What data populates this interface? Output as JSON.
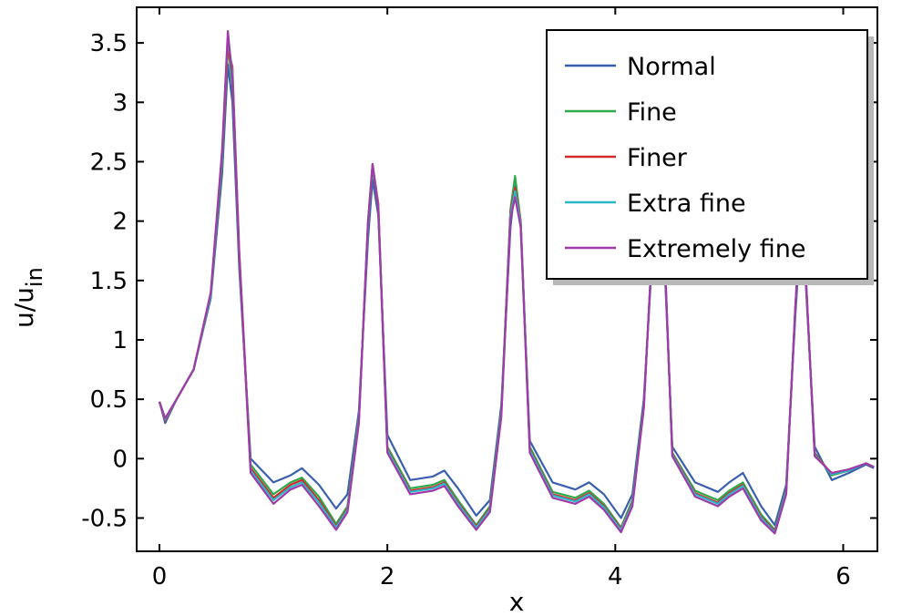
{
  "chart_data": {
    "type": "line",
    "xlabel": "x",
    "ylabel": "u/u",
    "ylabel_subscript": "in",
    "xlim": [
      -0.2,
      6.3
    ],
    "ylim": [
      -0.78,
      3.8
    ],
    "xticks": [
      0,
      2,
      4,
      6
    ],
    "xtick_labels": [
      "0",
      "2",
      "4",
      "6"
    ],
    "yticks": [
      -0.5,
      0,
      0.5,
      1,
      1.5,
      2,
      2.5,
      3,
      3.5
    ],
    "ytick_labels": [
      "-0.5",
      "0",
      "0.5",
      "1",
      "1.5",
      "2",
      "2.5",
      "3",
      "3.5"
    ],
    "grid": false,
    "legend_position": "top-right",
    "x": [
      0,
      0.05,
      0.15,
      0.3,
      0.45,
      0.55,
      0.6,
      0.64,
      0.7,
      0.8,
      1.0,
      1.15,
      1.25,
      1.4,
      1.55,
      1.65,
      1.75,
      1.83,
      1.87,
      1.92,
      2.0,
      2.2,
      2.4,
      2.5,
      2.62,
      2.78,
      2.9,
      3.0,
      3.08,
      3.12,
      3.17,
      3.25,
      3.45,
      3.65,
      3.77,
      3.9,
      4.05,
      4.15,
      4.25,
      4.33,
      4.38,
      4.42,
      4.5,
      4.7,
      4.9,
      5.0,
      5.12,
      5.28,
      5.4,
      5.5,
      5.58,
      5.62,
      5.67,
      5.75,
      5.9,
      6.05,
      6.2,
      6.27
    ],
    "series": [
      {
        "name": "Normal",
        "color": "#3a5fae",
        "values": [
          0.48,
          0.3,
          0.5,
          0.75,
          1.35,
          2.4,
          3.32,
          3.0,
          1.6,
          0.0,
          -0.2,
          -0.14,
          -0.08,
          -0.22,
          -0.42,
          -0.3,
          0.4,
          1.85,
          2.35,
          2.05,
          0.2,
          -0.18,
          -0.15,
          -0.1,
          -0.25,
          -0.48,
          -0.35,
          0.45,
          1.95,
          2.3,
          1.95,
          0.15,
          -0.2,
          -0.26,
          -0.2,
          -0.3,
          -0.5,
          -0.3,
          0.5,
          1.8,
          2.2,
          1.9,
          0.1,
          -0.2,
          -0.28,
          -0.2,
          -0.12,
          -0.4,
          -0.56,
          -0.22,
          1.2,
          1.8,
          1.5,
          0.1,
          -0.18,
          -0.12,
          -0.05,
          -0.08
        ]
      },
      {
        "name": "Fine",
        "color": "#2eaa4a",
        "values": [
          0.48,
          0.33,
          0.5,
          0.75,
          1.37,
          2.5,
          3.48,
          3.15,
          1.65,
          -0.05,
          -0.3,
          -0.2,
          -0.16,
          -0.32,
          -0.55,
          -0.4,
          0.35,
          1.95,
          2.45,
          2.1,
          0.1,
          -0.25,
          -0.22,
          -0.18,
          -0.35,
          -0.56,
          -0.4,
          0.4,
          2.1,
          2.38,
          2.0,
          0.1,
          -0.28,
          -0.33,
          -0.27,
          -0.38,
          -0.58,
          -0.35,
          0.45,
          1.88,
          2.3,
          2.0,
          0.05,
          -0.27,
          -0.35,
          -0.27,
          -0.2,
          -0.47,
          -0.6,
          -0.26,
          1.25,
          1.9,
          1.55,
          0.05,
          -0.14,
          -0.1,
          -0.04,
          -0.07
        ]
      },
      {
        "name": "Finer",
        "color": "#d12b2b",
        "values": [
          0.48,
          0.32,
          0.5,
          0.75,
          1.38,
          2.55,
          3.45,
          3.3,
          1.75,
          -0.08,
          -0.33,
          -0.22,
          -0.18,
          -0.35,
          -0.57,
          -0.42,
          0.33,
          1.98,
          2.48,
          2.15,
          0.08,
          -0.27,
          -0.24,
          -0.2,
          -0.37,
          -0.57,
          -0.42,
          0.38,
          2.08,
          2.28,
          2.0,
          0.08,
          -0.3,
          -0.35,
          -0.29,
          -0.4,
          -0.59,
          -0.37,
          0.44,
          1.9,
          2.32,
          2.02,
          0.04,
          -0.29,
          -0.37,
          -0.29,
          -0.22,
          -0.49,
          -0.61,
          -0.27,
          1.26,
          1.92,
          1.56,
          0.04,
          -0.13,
          -0.1,
          -0.04,
          -0.07
        ]
      },
      {
        "name": "Extra fine",
        "color": "#2ab8c8",
        "values": [
          0.48,
          0.33,
          0.5,
          0.75,
          1.38,
          2.57,
          3.55,
          3.25,
          1.7,
          -0.1,
          -0.35,
          -0.24,
          -0.2,
          -0.37,
          -0.58,
          -0.43,
          0.32,
          1.98,
          2.48,
          2.12,
          0.07,
          -0.28,
          -0.25,
          -0.21,
          -0.38,
          -0.58,
          -0.43,
          0.37,
          2.05,
          2.25,
          1.98,
          0.07,
          -0.31,
          -0.36,
          -0.3,
          -0.41,
          -0.6,
          -0.38,
          0.43,
          1.9,
          2.33,
          2.03,
          0.03,
          -0.3,
          -0.38,
          -0.3,
          -0.23,
          -0.5,
          -0.62,
          -0.28,
          1.27,
          1.93,
          1.57,
          0.03,
          -0.13,
          -0.1,
          -0.04,
          -0.07
        ]
      },
      {
        "name": "Extremely fine",
        "color": "#a03aa8",
        "values": [
          0.48,
          0.34,
          0.5,
          0.75,
          1.4,
          2.6,
          3.6,
          3.2,
          1.7,
          -0.12,
          -0.38,
          -0.26,
          -0.22,
          -0.4,
          -0.6,
          -0.45,
          0.3,
          2.0,
          2.48,
          2.1,
          0.05,
          -0.3,
          -0.27,
          -0.23,
          -0.4,
          -0.6,
          -0.45,
          0.35,
          2.02,
          2.2,
          1.95,
          0.05,
          -0.33,
          -0.38,
          -0.32,
          -0.43,
          -0.62,
          -0.4,
          0.42,
          1.9,
          2.35,
          2.05,
          0.02,
          -0.32,
          -0.4,
          -0.32,
          -0.25,
          -0.52,
          -0.63,
          -0.3,
          1.28,
          1.95,
          1.58,
          0.02,
          -0.12,
          -0.09,
          -0.04,
          -0.07
        ]
      }
    ]
  }
}
